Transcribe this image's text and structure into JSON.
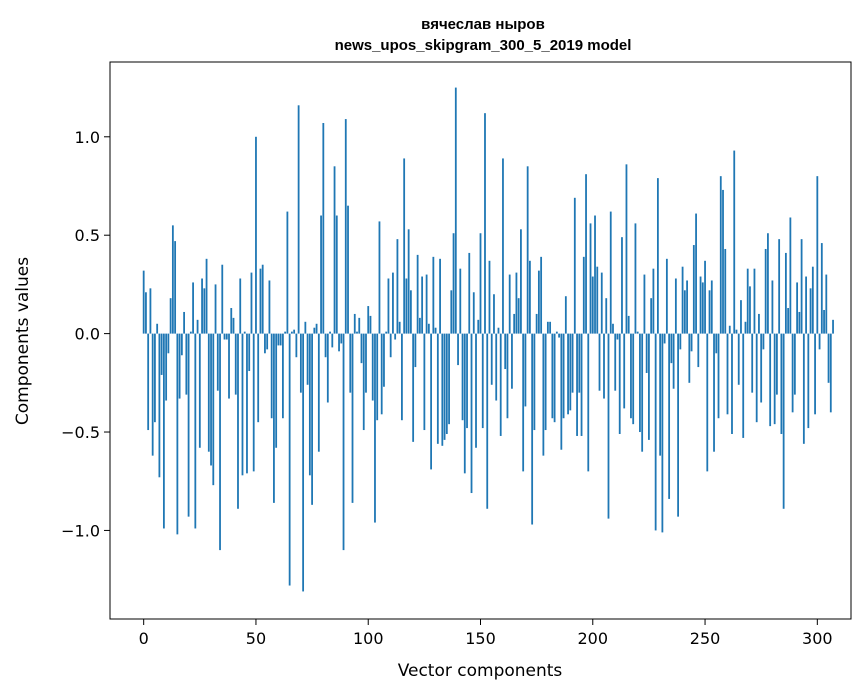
{
  "chart_data": {
    "type": "bar",
    "title": "вячеслав ныров",
    "subtitle": "news_upos_skipgram_300_5_2019 model",
    "xlabel": "Vector components",
    "ylabel": "Components values",
    "xlim": [
      -15,
      315
    ],
    "ylim": [
      -1.45,
      1.38
    ],
    "xticks": [
      0,
      50,
      100,
      150,
      200,
      250,
      300
    ],
    "xtick_labels": [
      "0",
      "50",
      "100",
      "150",
      "200",
      "250",
      "300"
    ],
    "yticks": [
      -1.0,
      -0.5,
      0.0,
      0.5,
      1.0
    ],
    "ytick_labels": [
      "−1.0",
      "−0.5",
      "0.0",
      "0.5",
      "1.0"
    ],
    "grid": false,
    "bar_color": "#1f77b4",
    "values": [
      0.32,
      0.21,
      -0.49,
      0.23,
      -0.62,
      -0.45,
      0.05,
      -0.73,
      -0.21,
      -0.99,
      -0.34,
      -0.1,
      0.18,
      0.55,
      0.47,
      -1.02,
      -0.33,
      -0.11,
      0.11,
      -0.31,
      -0.93,
      0.01,
      0.26,
      -0.99,
      0.07,
      -0.58,
      0.28,
      0.23,
      0.38,
      -0.6,
      -0.67,
      -0.77,
      0.25,
      -0.29,
      -1.1,
      0.35,
      -0.03,
      -0.03,
      -0.33,
      0.13,
      0.08,
      -0.31,
      -0.89,
      0.28,
      -0.72,
      0.01,
      -0.71,
      -0.19,
      0.31,
      -0.7,
      1.0,
      -0.45,
      0.33,
      0.35,
      -0.1,
      -0.08,
      0.27,
      -0.43,
      -0.86,
      -0.58,
      -0.06,
      -0.06,
      -0.43,
      0.01,
      0.62,
      -1.28,
      0.01,
      0.02,
      -0.12,
      1.16,
      -0.3,
      -1.31,
      0.06,
      -0.26,
      -0.72,
      -0.87,
      0.03,
      0.05,
      -0.6,
      0.6,
      1.07,
      -0.12,
      -0.35,
      0.01,
      -0.07,
      0.85,
      0.6,
      -0.09,
      -0.05,
      -1.1,
      1.09,
      0.65,
      -0.3,
      -0.86,
      0.1,
      0.01,
      0.08,
      -0.15,
      -0.49,
      -0.3,
      0.14,
      0.09,
      -0.34,
      -0.96,
      -0.44,
      0.57,
      -0.41,
      -0.27,
      0.01,
      0.28,
      -0.12,
      0.31,
      -0.03,
      0.48,
      0.06,
      -0.44,
      0.89,
      0.28,
      0.53,
      0.22,
      -0.55,
      -0.17,
      0.4,
      0.08,
      0.29,
      -0.49,
      0.3,
      0.05,
      -0.69,
      0.39,
      0.03,
      -0.56,
      0.38,
      -0.57,
      -0.54,
      -0.51,
      -0.46,
      0.22,
      0.51,
      1.25,
      -0.16,
      0.33,
      -0.44,
      -0.71,
      -0.48,
      0.41,
      -0.81,
      0.21,
      -0.58,
      0.07,
      0.51,
      -0.48,
      1.12,
      -0.89,
      0.37,
      -0.26,
      0.2,
      -0.34,
      0.03,
      -0.52,
      0.89,
      -0.18,
      -0.43,
      0.3,
      -0.28,
      0.1,
      0.31,
      0.18,
      0.53,
      -0.7,
      -0.37,
      0.85,
      0.37,
      -0.97,
      -0.49,
      0.1,
      0.32,
      0.39,
      -0.62,
      -0.49,
      0.06,
      0.06,
      -0.43,
      -0.45,
      0.01,
      -0.02,
      -0.59,
      -0.43,
      0.19,
      -0.41,
      -0.39,
      -0.3,
      0.69,
      -0.52,
      -0.3,
      -0.52,
      0.39,
      0.81,
      -0.7,
      0.56,
      0.29,
      0.6,
      0.34,
      -0.29,
      0.31,
      -0.33,
      0.18,
      -0.94,
      0.62,
      0.05,
      -0.29,
      -0.03,
      -0.51,
      0.49,
      -0.38,
      0.86,
      0.09,
      -0.43,
      -0.46,
      0.56,
      0.01,
      -0.5,
      -0.6,
      0.3,
      -0.2,
      -0.54,
      0.18,
      0.33,
      -1.0,
      0.79,
      -0.62,
      -1.01,
      -0.05,
      0.38,
      -0.84,
      -0.15,
      -0.28,
      0.28,
      -0.93,
      -0.08,
      0.34,
      0.22,
      0.27,
      -0.25,
      -0.09,
      0.45,
      0.61,
      -0.17,
      0.29,
      0.26,
      0.37,
      -0.7,
      0.22,
      0.27,
      -0.6,
      -0.1,
      -0.43,
      0.8,
      0.73,
      0.43,
      -0.41,
      0.04,
      -0.51,
      0.93,
      0.02,
      -0.26,
      0.17,
      -0.53,
      0.06,
      0.33,
      0.24,
      -0.3,
      0.33,
      -0.45,
      0.1,
      -0.35,
      -0.08,
      0.43,
      0.51,
      -0.47,
      0.27,
      -0.46,
      -0.31,
      0.48,
      -0.51,
      -0.89,
      0.41,
      0.13,
      0.59,
      -0.4,
      -0.31,
      0.26,
      0.11,
      0.48,
      -0.56,
      0.29,
      -0.48,
      0.23,
      0.34,
      -0.41,
      0.8,
      -0.08,
      0.46,
      0.12,
      0.3,
      -0.25,
      -0.4,
      0.07
    ]
  }
}
